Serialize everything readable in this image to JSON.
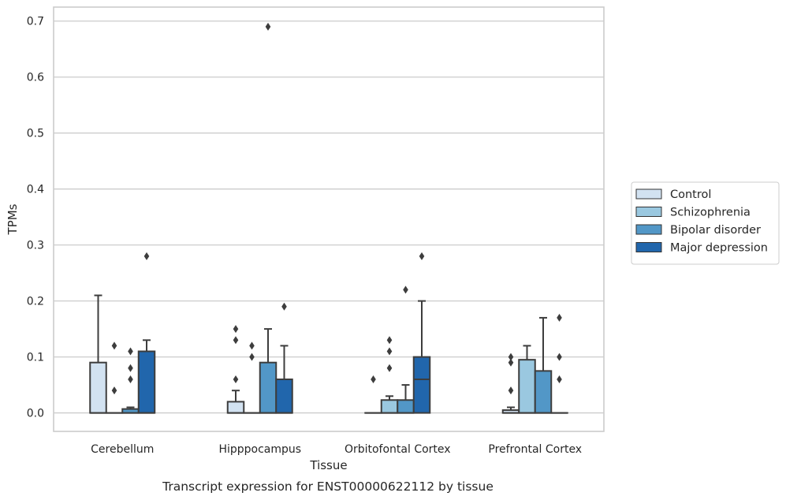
{
  "chart_data": {
    "type": "box",
    "caption": "Transcript expression for ENST00000622112 by tissue",
    "xlabel": "Tissue",
    "ylabel": "TPMs",
    "ylim": [
      -0.033,
      0.725
    ],
    "yticks": [
      0.0,
      0.1,
      0.2,
      0.3,
      0.4,
      0.5,
      0.6,
      0.7
    ],
    "ytick_labels": [
      "0.0",
      "0.1",
      "0.2",
      "0.3",
      "0.4",
      "0.5",
      "0.6",
      "0.7"
    ],
    "grid": true,
    "legend_position": "right",
    "categories": [
      "Cerebellum",
      "Hipppocampus",
      "Orbitofontal Cortex",
      "Prefrontal Cortex"
    ],
    "series": [
      {
        "name": "Control",
        "color": "#d2e2f1",
        "boxes": [
          {
            "q1": 0.0,
            "median": 0.0,
            "q3": 0.09,
            "whisker_low": 0.0,
            "whisker_high": 0.21,
            "outliers": []
          },
          {
            "q1": 0.0,
            "median": 0.0,
            "q3": 0.02,
            "whisker_low": 0.0,
            "whisker_high": 0.04,
            "outliers": [
              0.06,
              0.13,
              0.15
            ]
          },
          {
            "q1": 0.0,
            "median": 0.0,
            "q3": 0.0,
            "whisker_low": 0.0,
            "whisker_high": 0.0,
            "outliers": [
              0.06
            ]
          },
          {
            "q1": 0.0,
            "median": 0.0,
            "q3": 0.005,
            "whisker_low": 0.0,
            "whisker_high": 0.01,
            "outliers": [
              0.04,
              0.09,
              0.1
            ]
          }
        ]
      },
      {
        "name": "Schizophrenia",
        "color": "#9ac8e0",
        "boxes": [
          {
            "q1": 0.0,
            "median": 0.0,
            "q3": 0.0,
            "whisker_low": 0.0,
            "whisker_high": 0.0,
            "outliers": [
              0.04,
              0.12
            ]
          },
          {
            "q1": 0.0,
            "median": 0.0,
            "q3": 0.0,
            "whisker_low": 0.0,
            "whisker_high": 0.0,
            "outliers": [
              0.1,
              0.12
            ]
          },
          {
            "q1": 0.0,
            "median": 0.0,
            "q3": 0.023,
            "whisker_low": 0.0,
            "whisker_high": 0.03,
            "outliers": [
              0.08,
              0.11,
              0.13
            ]
          },
          {
            "q1": 0.0,
            "median": 0.0,
            "q3": 0.095,
            "whisker_low": 0.0,
            "whisker_high": 0.12,
            "outliers": []
          }
        ]
      },
      {
        "name": "Bipolar disorder",
        "color": "#5297c7",
        "boxes": [
          {
            "q1": 0.0,
            "median": 0.0,
            "q3": 0.007,
            "whisker_low": 0.0,
            "whisker_high": 0.01,
            "outliers": [
              0.06,
              0.08,
              0.11
            ]
          },
          {
            "q1": 0.0,
            "median": 0.0,
            "q3": 0.09,
            "whisker_low": 0.0,
            "whisker_high": 0.15,
            "outliers": [
              0.69
            ]
          },
          {
            "q1": 0.0,
            "median": 0.0,
            "q3": 0.023,
            "whisker_low": 0.0,
            "whisker_high": 0.05,
            "outliers": [
              0.22
            ]
          },
          {
            "q1": 0.0,
            "median": 0.0,
            "q3": 0.075,
            "whisker_low": 0.0,
            "whisker_high": 0.17,
            "outliers": []
          }
        ]
      },
      {
        "name": "Major depression",
        "color": "#2166ac",
        "boxes": [
          {
            "q1": 0.0,
            "median": 0.0,
            "q3": 0.11,
            "whisker_low": 0.0,
            "whisker_high": 0.13,
            "outliers": [
              0.28
            ]
          },
          {
            "q1": 0.0,
            "median": 0.0,
            "q3": 0.06,
            "whisker_low": 0.0,
            "whisker_high": 0.12,
            "outliers": [
              0.19
            ]
          },
          {
            "q1": 0.0,
            "median": 0.06,
            "q3": 0.1,
            "whisker_low": 0.0,
            "whisker_high": 0.2,
            "outliers": [
              0.28
            ]
          },
          {
            "q1": 0.0,
            "median": 0.0,
            "q3": 0.0,
            "whisker_low": 0.0,
            "whisker_high": 0.0,
            "outliers": [
              0.06,
              0.1,
              0.17
            ]
          }
        ]
      }
    ]
  }
}
